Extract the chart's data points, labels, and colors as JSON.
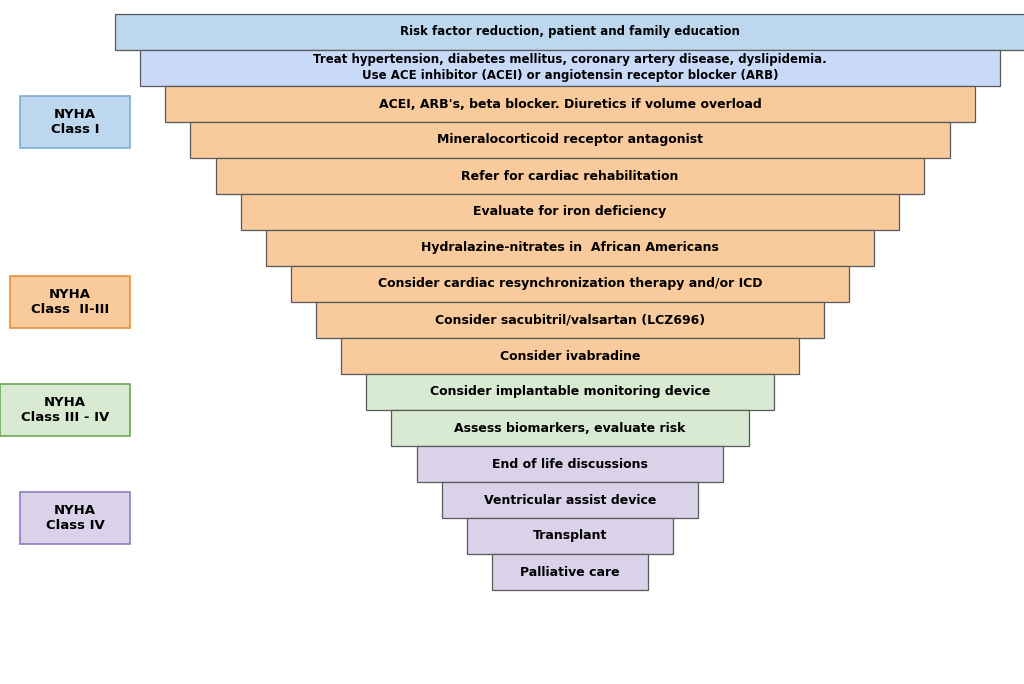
{
  "layers": [
    {
      "text": "Risk factor reduction, patient and family education",
      "color": "#bdd7ee",
      "level": 0
    },
    {
      "text": "Treat hypertension, diabetes mellitus, coronary artery disease, dyslipidemia.\nUse ACE inhibitor (ACEI) or angiotensin receptor blocker (ARB)",
      "color": "#c9daf8",
      "level": 1
    },
    {
      "text": "ACEI, ARB's, beta blocker. Diuretics if volume overload",
      "color": "#f9cb9c",
      "level": 2
    },
    {
      "text": "Mineralocorticoid receptor antagonist",
      "color": "#f9cb9c",
      "level": 3
    },
    {
      "text": "Refer for cardiac rehabilitation",
      "color": "#f9cb9c",
      "level": 4
    },
    {
      "text": "Evaluate for iron deficiency",
      "color": "#f9cb9c",
      "level": 5
    },
    {
      "text": "Hydralazine-nitrates in  African Americans",
      "color": "#f9cb9c",
      "level": 6
    },
    {
      "text": "Consider cardiac resynchronization therapy and/or ICD",
      "color": "#f9cb9c",
      "level": 7
    },
    {
      "text": "Consider sacubitril/valsartan (LCZ696)",
      "color": "#f9cb9c",
      "level": 8
    },
    {
      "text": "Consider ivabradine",
      "color": "#f9cb9c",
      "level": 9
    },
    {
      "text": "Consider implantable monitoring device",
      "color": "#d9ead3",
      "level": 10
    },
    {
      "text": "Assess biomarkers, evaluate risk",
      "color": "#d9ead3",
      "level": 11
    },
    {
      "text": "End of life discussions",
      "color": "#d9d2e9",
      "level": 12
    },
    {
      "text": "Ventricular assist device",
      "color": "#d9d2e9",
      "level": 13
    },
    {
      "text": "Transplant",
      "color": "#d9d2e9",
      "level": 14
    },
    {
      "text": "Palliative care",
      "color": "#d9d2e9",
      "level": 15
    }
  ],
  "bg_color": "#ffffff",
  "text_color": "#000000",
  "border_color": "#595959"
}
